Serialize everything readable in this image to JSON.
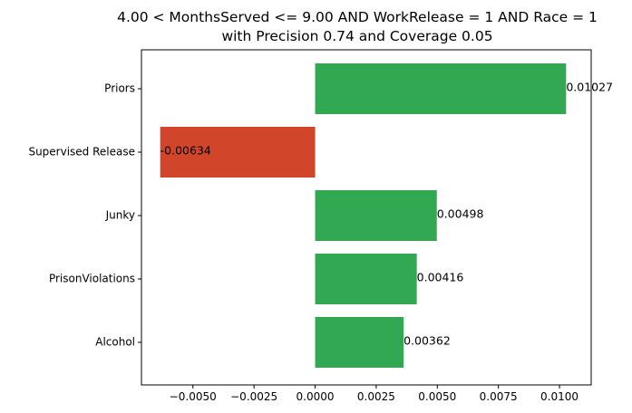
{
  "chart_data": {
    "type": "bar",
    "orientation": "horizontal",
    "title_line1": "4.00 < MonthsServed <= 9.00 AND WorkRelease = 1 AND Race = 1",
    "title_line2": "with Precision 0.74 and Coverage 0.05",
    "categories": [
      "Priors",
      "Supervised Release",
      "Junky",
      "PrisonViolations",
      "Alcohol"
    ],
    "values": [
      0.01027,
      -0.00634,
      0.00498,
      0.00416,
      0.00362
    ],
    "value_labels": [
      "0.01027",
      "-0.00634",
      "0.00498",
      "0.00416",
      "0.00362"
    ],
    "xticks": [
      -0.005,
      -0.0025,
      0.0,
      0.0025,
      0.005,
      0.0075,
      0.01
    ],
    "xtick_labels": [
      "−0.0050",
      "−0.0025",
      "0.0000",
      "0.0025",
      "0.0050",
      "0.0075",
      "0.0100"
    ],
    "xlim": [
      -0.007107,
      0.011297
    ],
    "grid": false,
    "colors": {
      "positive": "#33a852",
      "negative": "#d1462a"
    }
  }
}
